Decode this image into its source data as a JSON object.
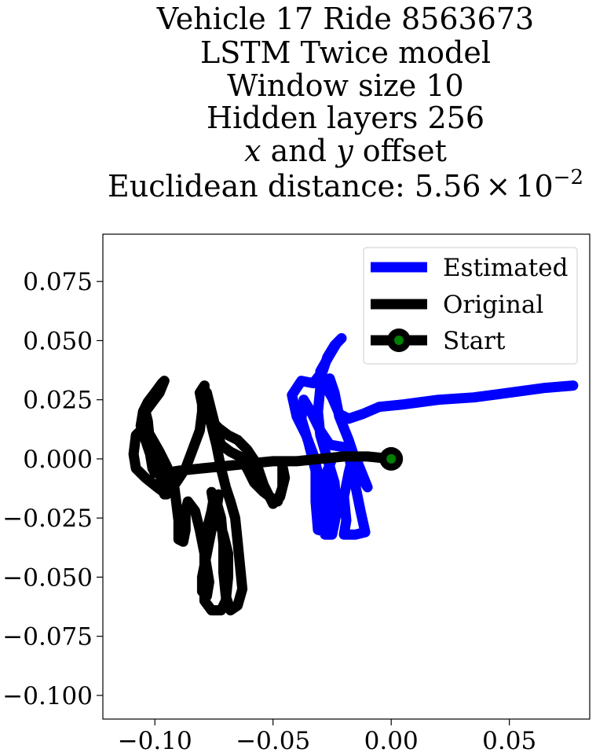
{
  "chart_data": {
    "type": "line",
    "title_lines": [
      "Vehicle 17 Ride 8563673",
      "LSTM Twice model",
      "Window size 10",
      "Hidden layers 256"
    ],
    "offset_line": {
      "x_var": "x",
      "mid": " and ",
      "y_var": "y",
      "tail": " offset"
    },
    "distance_line": {
      "prefix": "Euclidean distance: 5.56",
      "times": "×",
      "base": "10",
      "exponent": "−2"
    },
    "xlim": [
      -0.122,
      0.084
    ],
    "ylim": [
      -0.11,
      0.095
    ],
    "x_ticks": [
      -0.1,
      -0.05,
      0.0,
      0.05
    ],
    "x_tick_labels": [
      "−0.10",
      "−0.05",
      "0.00",
      "0.05"
    ],
    "y_ticks": [
      0.075,
      0.05,
      0.025,
      0.0,
      -0.025,
      -0.05,
      -0.075,
      -0.1
    ],
    "y_tick_labels": [
      "0.075",
      "0.050",
      "0.025",
      "0.000",
      "−0.025",
      "−0.050",
      "−0.075",
      "−0.100"
    ],
    "grid": false,
    "legend_placement": "top-right",
    "legend": [
      "Estimated",
      "Original",
      "Start"
    ],
    "colors": {
      "estimated": "#0000ff",
      "original": "#000000",
      "start_marker": "#008000"
    },
    "series": [
      {
        "name": "Estimated",
        "points": [
          [
            0.077,
            0.031
          ],
          [
            0.065,
            0.03
          ],
          [
            0.05,
            0.028
          ],
          [
            0.035,
            0.026
          ],
          [
            0.02,
            0.025
          ],
          [
            0.005,
            0.023
          ],
          [
            -0.005,
            0.022
          ],
          [
            -0.012,
            0.019
          ],
          [
            -0.018,
            0.017
          ],
          [
            -0.022,
            0.019
          ],
          [
            -0.025,
            0.026
          ],
          [
            -0.028,
            0.031
          ],
          [
            -0.03,
            0.037
          ],
          [
            -0.026,
            0.044
          ],
          [
            -0.023,
            0.049
          ],
          [
            -0.021,
            0.051
          ],
          [
            -0.024,
            0.048
          ],
          [
            -0.027,
            0.043
          ],
          [
            -0.029,
            0.037
          ],
          [
            -0.033,
            0.032
          ],
          [
            -0.038,
            0.033
          ],
          [
            -0.042,
            0.027
          ],
          [
            -0.04,
            0.018
          ],
          [
            -0.036,
            0.01
          ],
          [
            -0.033,
            0.002
          ],
          [
            -0.03,
            -0.01
          ],
          [
            -0.029,
            -0.022
          ],
          [
            -0.028,
            -0.032
          ],
          [
            -0.025,
            -0.032
          ],
          [
            -0.023,
            -0.022
          ],
          [
            -0.024,
            -0.01
          ],
          [
            -0.027,
            0.0
          ],
          [
            -0.03,
            0.01
          ],
          [
            -0.031,
            0.02
          ],
          [
            -0.03,
            0.03
          ],
          [
            -0.026,
            0.034
          ],
          [
            -0.024,
            0.028
          ],
          [
            -0.022,
            0.018
          ],
          [
            -0.02,
            0.013
          ],
          [
            -0.018,
            0.008
          ],
          [
            -0.016,
            0.002
          ],
          [
            -0.018,
            -0.006
          ],
          [
            -0.02,
            -0.016
          ],
          [
            -0.019,
            -0.026
          ],
          [
            -0.02,
            -0.032
          ],
          [
            -0.015,
            -0.032
          ],
          [
            -0.011,
            -0.031
          ],
          [
            -0.013,
            -0.022
          ],
          [
            -0.015,
            -0.012
          ],
          [
            -0.017,
            -0.004
          ],
          [
            -0.018,
            0.004
          ],
          [
            -0.014,
            -0.006
          ],
          [
            -0.01,
            -0.012
          ],
          [
            -0.014,
            -0.002
          ],
          [
            -0.02,
            0.005
          ],
          [
            -0.026,
            0.006
          ],
          [
            -0.03,
            0.012
          ],
          [
            -0.034,
            0.02
          ],
          [
            -0.037,
            0.025
          ],
          [
            -0.038,
            0.017
          ],
          [
            -0.035,
            0.007
          ],
          [
            -0.032,
            -0.005
          ],
          [
            -0.032,
            -0.018
          ],
          [
            -0.031,
            -0.03
          ],
          [
            -0.027,
            -0.031
          ],
          [
            -0.026,
            -0.018
          ],
          [
            -0.027,
            -0.005
          ],
          [
            -0.025,
            0.0
          ]
        ]
      },
      {
        "name": "Original",
        "points": [
          [
            0.0,
            0.0
          ],
          [
            -0.01,
            0.001
          ],
          [
            -0.02,
            0.001
          ],
          [
            -0.03,
            0.0
          ],
          [
            -0.04,
            -0.001
          ],
          [
            -0.05,
            -0.001
          ],
          [
            -0.06,
            -0.002
          ],
          [
            -0.07,
            -0.003
          ],
          [
            -0.08,
            -0.004
          ],
          [
            -0.09,
            -0.005
          ],
          [
            -0.096,
            -0.006
          ],
          [
            -0.098,
            -0.01
          ],
          [
            -0.096,
            -0.015
          ],
          [
            -0.091,
            -0.01
          ],
          [
            -0.087,
            -0.004
          ],
          [
            -0.084,
            0.004
          ],
          [
            -0.081,
            0.012
          ],
          [
            -0.08,
            0.02
          ],
          [
            -0.08,
            0.027
          ],
          [
            -0.078,
            0.028
          ],
          [
            -0.076,
            0.02
          ],
          [
            -0.074,
            0.012
          ],
          [
            -0.072,
            0.006
          ],
          [
            -0.068,
            0.003
          ],
          [
            -0.064,
            0.001
          ],
          [
            -0.061,
            -0.004
          ],
          [
            -0.058,
            -0.01
          ],
          [
            -0.054,
            -0.014
          ],
          [
            -0.05,
            -0.017
          ],
          [
            -0.048,
            -0.018
          ],
          [
            -0.046,
            -0.012
          ],
          [
            -0.046,
            -0.005
          ],
          [
            -0.046,
            -0.003
          ],
          [
            -0.045,
            -0.008
          ],
          [
            -0.047,
            -0.016
          ],
          [
            -0.05,
            -0.019
          ],
          [
            -0.054,
            -0.011
          ],
          [
            -0.057,
            -0.002
          ],
          [
            -0.061,
            0.004
          ],
          [
            -0.065,
            0.008
          ],
          [
            -0.069,
            0.01
          ],
          [
            -0.073,
            0.013
          ],
          [
            -0.077,
            0.017
          ],
          [
            -0.08,
            0.023
          ],
          [
            -0.081,
            0.028
          ],
          [
            -0.079,
            0.031
          ],
          [
            -0.079,
            0.026
          ],
          [
            -0.077,
            0.018
          ],
          [
            -0.074,
            0.006
          ],
          [
            -0.072,
            -0.004
          ],
          [
            -0.07,
            -0.012
          ],
          [
            -0.068,
            -0.018
          ],
          [
            -0.066,
            -0.025
          ],
          [
            -0.065,
            -0.035
          ],
          [
            -0.064,
            -0.045
          ],
          [
            -0.063,
            -0.055
          ],
          [
            -0.065,
            -0.062
          ],
          [
            -0.068,
            -0.064
          ],
          [
            -0.07,
            -0.058
          ],
          [
            -0.071,
            -0.048
          ],
          [
            -0.071,
            -0.036
          ],
          [
            -0.072,
            -0.025
          ],
          [
            -0.074,
            -0.018
          ],
          [
            -0.076,
            -0.014
          ],
          [
            -0.075,
            -0.02
          ],
          [
            -0.073,
            -0.026
          ],
          [
            -0.071,
            -0.032
          ],
          [
            -0.069,
            -0.04
          ],
          [
            -0.069,
            -0.05
          ],
          [
            -0.07,
            -0.06
          ],
          [
            -0.072,
            -0.064
          ],
          [
            -0.076,
            -0.064
          ],
          [
            -0.079,
            -0.06
          ],
          [
            -0.079,
            -0.05
          ],
          [
            -0.079,
            -0.04
          ],
          [
            -0.078,
            -0.03
          ],
          [
            -0.076,
            -0.022
          ],
          [
            -0.075,
            -0.016
          ],
          [
            -0.073,
            -0.015
          ],
          [
            -0.074,
            -0.022
          ],
          [
            -0.076,
            -0.03
          ],
          [
            -0.078,
            -0.04
          ],
          [
            -0.08,
            -0.05
          ],
          [
            -0.08,
            -0.056
          ],
          [
            -0.078,
            -0.058
          ],
          [
            -0.077,
            -0.052
          ],
          [
            -0.079,
            -0.04
          ],
          [
            -0.081,
            -0.03
          ],
          [
            -0.083,
            -0.022
          ],
          [
            -0.086,
            -0.018
          ],
          [
            -0.087,
            -0.022
          ],
          [
            -0.087,
            -0.03
          ],
          [
            -0.088,
            -0.035
          ],
          [
            -0.09,
            -0.034
          ],
          [
            -0.09,
            -0.026
          ],
          [
            -0.091,
            -0.018
          ],
          [
            -0.092,
            -0.01
          ],
          [
            -0.095,
            -0.003
          ],
          [
            -0.098,
            0.003
          ],
          [
            -0.102,
            0.01
          ],
          [
            -0.106,
            0.012
          ],
          [
            -0.108,
            0.01
          ],
          [
            -0.109,
            0.002
          ],
          [
            -0.108,
            -0.004
          ],
          [
            -0.104,
            -0.008
          ],
          [
            -0.099,
            -0.012
          ],
          [
            -0.095,
            -0.015
          ],
          [
            -0.096,
            -0.01
          ],
          [
            -0.099,
            -0.002
          ],
          [
            -0.102,
            0.006
          ],
          [
            -0.103,
            0.016
          ],
          [
            -0.104,
            0.02
          ],
          [
            -0.101,
            0.024
          ],
          [
            -0.098,
            0.028
          ],
          [
            -0.096,
            0.033
          ],
          [
            -0.097,
            0.032
          ],
          [
            -0.1,
            0.028
          ],
          [
            -0.103,
            0.024
          ],
          [
            -0.105,
            0.02
          ],
          [
            -0.106,
            0.014
          ],
          [
            -0.104,
            0.008
          ],
          [
            -0.102,
            0.002
          ],
          [
            -0.101,
            -0.004
          ],
          [
            -0.1,
            -0.006
          ]
        ]
      }
    ],
    "start_point": [
      0.0,
      0.0
    ]
  }
}
